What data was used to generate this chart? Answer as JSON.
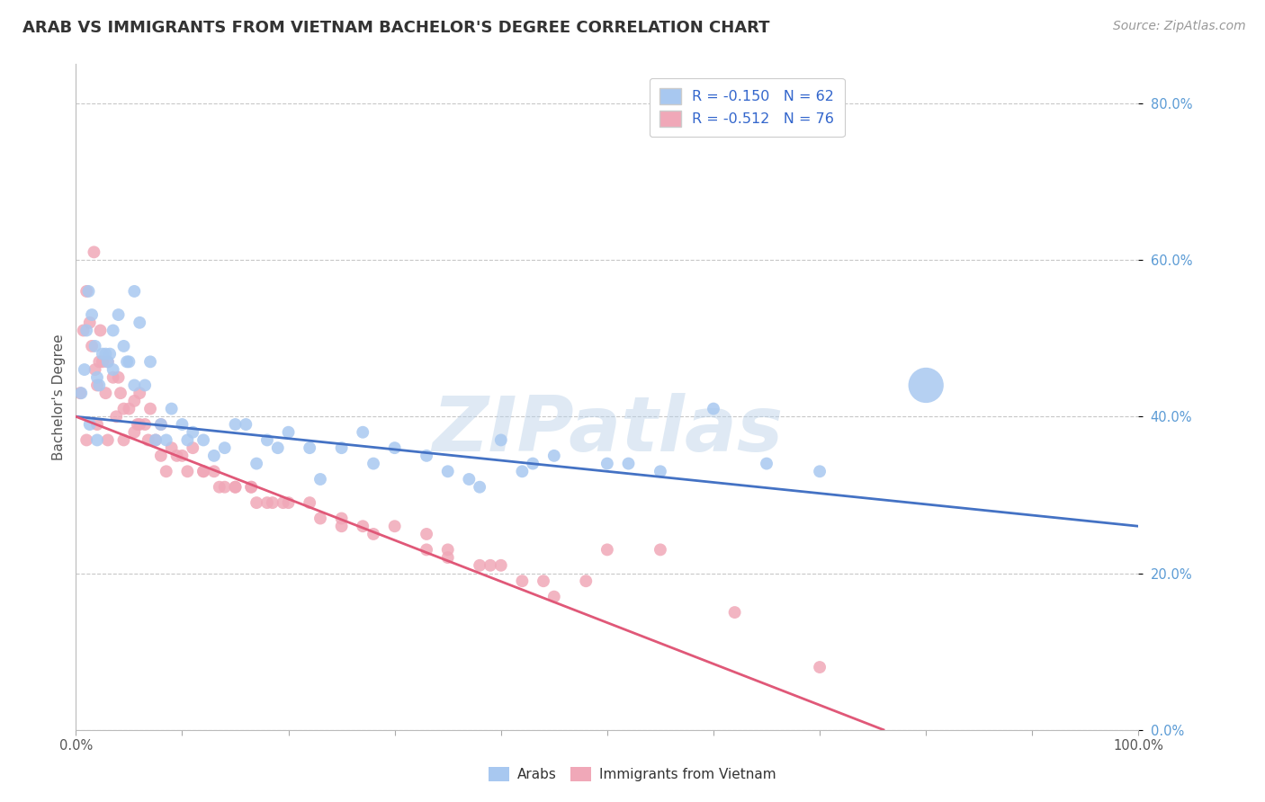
{
  "title": "ARAB VS IMMIGRANTS FROM VIETNAM BACHELOR'S DEGREE CORRELATION CHART",
  "source": "Source: ZipAtlas.com",
  "ylabel": "Bachelor's Degree",
  "legend_arab": "R = -0.150   N = 62",
  "legend_viet": "R = -0.512   N = 76",
  "legend_arab_label": "Arabs",
  "legend_viet_label": "Immigrants from Vietnam",
  "arab_color": "#a8c8f0",
  "viet_color": "#f0a8b8",
  "arab_line_color": "#4472c4",
  "viet_line_color": "#e05878",
  "watermark": "ZIPatlas",
  "background": "#ffffff",
  "grid_color": "#c8c8c8",
  "arab_scatter_x": [
    0.5,
    0.8,
    1.0,
    1.2,
    1.5,
    1.8,
    2.0,
    2.2,
    2.5,
    3.0,
    3.5,
    4.0,
    4.5,
    5.0,
    5.5,
    6.0,
    7.0,
    8.0,
    9.0,
    10.0,
    11.0,
    12.0,
    14.0,
    15.0,
    16.0,
    18.0,
    20.0,
    22.0,
    25.0,
    27.0,
    30.0,
    33.0,
    35.0,
    38.0,
    40.0,
    43.0,
    45.0,
    50.0,
    55.0,
    65.0,
    70.0,
    80.0,
    1.3,
    2.0,
    3.2,
    4.8,
    6.5,
    8.5,
    10.5,
    13.0,
    17.0,
    19.0,
    23.0,
    28.0,
    37.0,
    42.0,
    52.0,
    60.0,
    2.8,
    3.5,
    5.5,
    7.5
  ],
  "arab_scatter_y": [
    43,
    46,
    51,
    56,
    53,
    49,
    45,
    44,
    48,
    47,
    51,
    53,
    49,
    47,
    56,
    52,
    47,
    39,
    41,
    39,
    38,
    37,
    36,
    39,
    39,
    37,
    38,
    36,
    36,
    38,
    36,
    35,
    33,
    31,
    37,
    34,
    35,
    34,
    33,
    34,
    33,
    44,
    39,
    37,
    48,
    47,
    44,
    37,
    37,
    35,
    34,
    36,
    32,
    34,
    32,
    33,
    34,
    41,
    48,
    46,
    44,
    37
  ],
  "arab_scatter_big_idx": 41,
  "arab_scatter_big_size": 800,
  "arab_scatter_small_size": 100,
  "viet_scatter_x": [
    0.4,
    0.7,
    1.0,
    1.3,
    1.5,
    1.8,
    2.0,
    2.3,
    2.5,
    3.0,
    3.5,
    4.0,
    4.5,
    5.0,
    5.5,
    6.0,
    6.5,
    7.0,
    8.0,
    9.0,
    10.0,
    11.0,
    12.0,
    13.0,
    14.0,
    15.0,
    16.5,
    18.0,
    20.0,
    22.0,
    25.0,
    28.0,
    30.0,
    33.0,
    35.0,
    38.0,
    40.0,
    42.0,
    45.0,
    48.0,
    50.0,
    55.0,
    62.0,
    70.0,
    1.0,
    2.0,
    3.0,
    4.5,
    6.0,
    8.0,
    10.5,
    13.5,
    16.5,
    19.5,
    23.0,
    27.0,
    33.0,
    39.0,
    44.0,
    2.8,
    4.2,
    5.8,
    7.5,
    9.5,
    12.0,
    15.0,
    18.5,
    35.0,
    25.0,
    8.5,
    5.5,
    3.8,
    6.8,
    2.2,
    1.7,
    17.0
  ],
  "viet_scatter_y": [
    43,
    51,
    56,
    52,
    49,
    46,
    44,
    51,
    47,
    47,
    45,
    45,
    41,
    41,
    42,
    43,
    39,
    41,
    39,
    36,
    35,
    36,
    33,
    33,
    31,
    31,
    31,
    29,
    29,
    29,
    26,
    25,
    26,
    23,
    23,
    21,
    21,
    19,
    17,
    19,
    23,
    23,
    15,
    8,
    37,
    39,
    37,
    37,
    39,
    35,
    33,
    31,
    31,
    29,
    27,
    26,
    25,
    21,
    19,
    43,
    43,
    39,
    37,
    35,
    33,
    31,
    29,
    22,
    27,
    33,
    38,
    40,
    37,
    47,
    61,
    29
  ],
  "viet_scatter_size": 100,
  "xlim": [
    0,
    100
  ],
  "ylim": [
    0,
    85
  ],
  "yticks": [
    0,
    20,
    40,
    60,
    80
  ],
  "ytick_labels": [
    "0.0%",
    "20.0%",
    "40.0%",
    "60.0%",
    "80.0%"
  ],
  "xtick_positions": [
    0,
    10,
    20,
    30,
    40,
    50,
    60,
    70,
    80,
    90,
    100
  ],
  "arab_line": {
    "x0": 0,
    "y0": 40,
    "x1": 100,
    "y1": 26
  },
  "viet_line": {
    "x0": 0,
    "y0": 40,
    "x1": 76,
    "y1": 0
  }
}
